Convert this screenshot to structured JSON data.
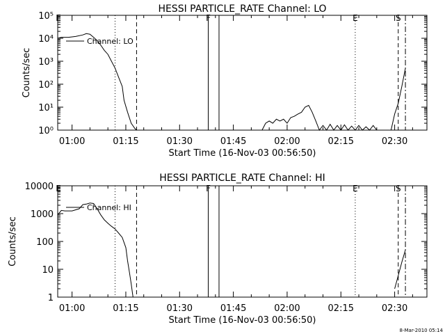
{
  "footer": {
    "date_stamp": "8-Mar-2010 05:14"
  },
  "chart_data": [
    {
      "type": "line",
      "title": "HESSI PARTICLE_RATE Channel: LO",
      "xlabel": "Start Time (16-Nov-03 00:56:50)",
      "ylabel": "Counts/sec",
      "yscale": "log",
      "xlim_minutes_after_0100": [
        -4,
        99
      ],
      "ylim": [
        1,
        100000
      ],
      "xticks": [
        "01:00",
        "01:15",
        "01:30",
        "01:45",
        "02:00",
        "02:15",
        "02:30"
      ],
      "yticks": [
        "10⁰",
        "10¹",
        "10²",
        "10³",
        "10⁴",
        "10⁵"
      ],
      "legend": "Channel: LO",
      "series": [
        {
          "name": "Channel: LO",
          "x": [
            "00:56",
            "00:57",
            "00:59",
            "01:01",
            "01:03",
            "01:04",
            "01:05",
            "01:06",
            "01:07",
            "01:08",
            "01:09",
            "01:10",
            "01:11",
            "01:12",
            "01:13",
            "01:14",
            "01:14:30",
            "01:15:30",
            "01:16:30",
            "01:17:30",
            "01:18"
          ],
          "y": [
            10000,
            11000,
            11000,
            12000,
            14000,
            16000,
            15000,
            11000,
            8000,
            5000,
            3000,
            2000,
            1000,
            500,
            200,
            80,
            20,
            6,
            2,
            1.2,
            1
          ]
        },
        {
          "name": "Channel: LO",
          "x": [
            "01:53",
            "01:54",
            "01:55",
            "01:56",
            "01:57",
            "01:58",
            "01:59",
            "02:00",
            "02:01",
            "02:02",
            "02:03",
            "02:04",
            "02:05",
            "02:06",
            "02:07",
            "02:08",
            "02:09",
            "02:10",
            "02:11",
            "02:12",
            "02:13",
            "02:14",
            "02:15",
            "02:16",
            "02:17",
            "02:18",
            "02:19",
            "02:20",
            "02:21",
            "02:22",
            "02:23",
            "02:24",
            "02:25"
          ],
          "y": [
            1,
            2,
            2.5,
            2,
            3,
            2.5,
            3,
            2,
            3.5,
            4,
            5,
            6,
            10,
            12,
            6,
            2.5,
            1,
            1.6,
            1,
            1.8,
            1,
            1.6,
            1,
            1.7,
            1,
            1.5,
            1,
            1.6,
            1,
            1.4,
            1,
            1.6,
            1
          ]
        },
        {
          "name": "Channel: LO",
          "x": [
            "02:29",
            "02:30",
            "02:31",
            "02:32",
            "02:33"
          ],
          "y": [
            1,
            5,
            15,
            80,
            500
          ]
        }
      ],
      "markers": [
        {
          "label": "E",
          "time": "00:56",
          "style": "none"
        },
        {
          "label": "",
          "time": "01:12",
          "style": "dotted"
        },
        {
          "label": "",
          "time": "01:18",
          "style": "dashed"
        },
        {
          "label": "F",
          "time": "01:38",
          "style": "solid"
        },
        {
          "label": "",
          "time": "01:41",
          "style": "solid"
        },
        {
          "label": "E",
          "time": "02:19",
          "style": "dotted"
        },
        {
          "label": "S",
          "time": "02:31",
          "style": "dashed"
        },
        {
          "label": "",
          "time": "02:33",
          "style": "dashdot"
        }
      ]
    },
    {
      "type": "line",
      "title": "HESSI PARTICLE_RATE Channel: HI",
      "xlabel": "Start Time (16-Nov-03 00:56:50)",
      "ylabel": "Counts/sec",
      "yscale": "log",
      "xlim_minutes_after_0100": [
        -4,
        99
      ],
      "ylim": [
        1,
        10000
      ],
      "xticks": [
        "01:00",
        "01:15",
        "01:30",
        "01:45",
        "02:00",
        "02:15",
        "02:30"
      ],
      "yticks": [
        "1",
        "10",
        "100",
        "1000",
        "10000"
      ],
      "legend": "Channel: HI",
      "series": [
        {
          "name": "Channel: HI",
          "x": [
            "00:56",
            "00:57",
            "00:58",
            "01:00",
            "01:02",
            "01:03",
            "01:04",
            "01:05",
            "01:06",
            "01:07",
            "01:08",
            "01:09",
            "01:10",
            "01:11",
            "01:12",
            "01:13",
            "01:14",
            "01:15",
            "01:15:30",
            "01:16",
            "01:16:30",
            "01:17"
          ],
          "y": [
            900,
            1300,
            1250,
            1250,
            1500,
            2100,
            2200,
            2400,
            2300,
            1500,
            900,
            600,
            450,
            350,
            280,
            200,
            140,
            60,
            20,
            8,
            3,
            1
          ]
        },
        {
          "name": "Channel: HI",
          "x": [
            "02:30",
            "02:31",
            "02:32",
            "02:33"
          ],
          "y": [
            2,
            6,
            18,
            50
          ]
        }
      ],
      "markers": [
        {
          "label": "E",
          "time": "00:56",
          "style": "none"
        },
        {
          "label": "",
          "time": "01:12",
          "style": "dotted"
        },
        {
          "label": "",
          "time": "01:18",
          "style": "dashed"
        },
        {
          "label": "F",
          "time": "01:38",
          "style": "solid"
        },
        {
          "label": "",
          "time": "01:41",
          "style": "solid"
        },
        {
          "label": "E",
          "time": "02:19",
          "style": "dotted"
        },
        {
          "label": "S",
          "time": "02:31",
          "style": "dashed"
        },
        {
          "label": "",
          "time": "02:33",
          "style": "dashdot"
        }
      ]
    }
  ]
}
